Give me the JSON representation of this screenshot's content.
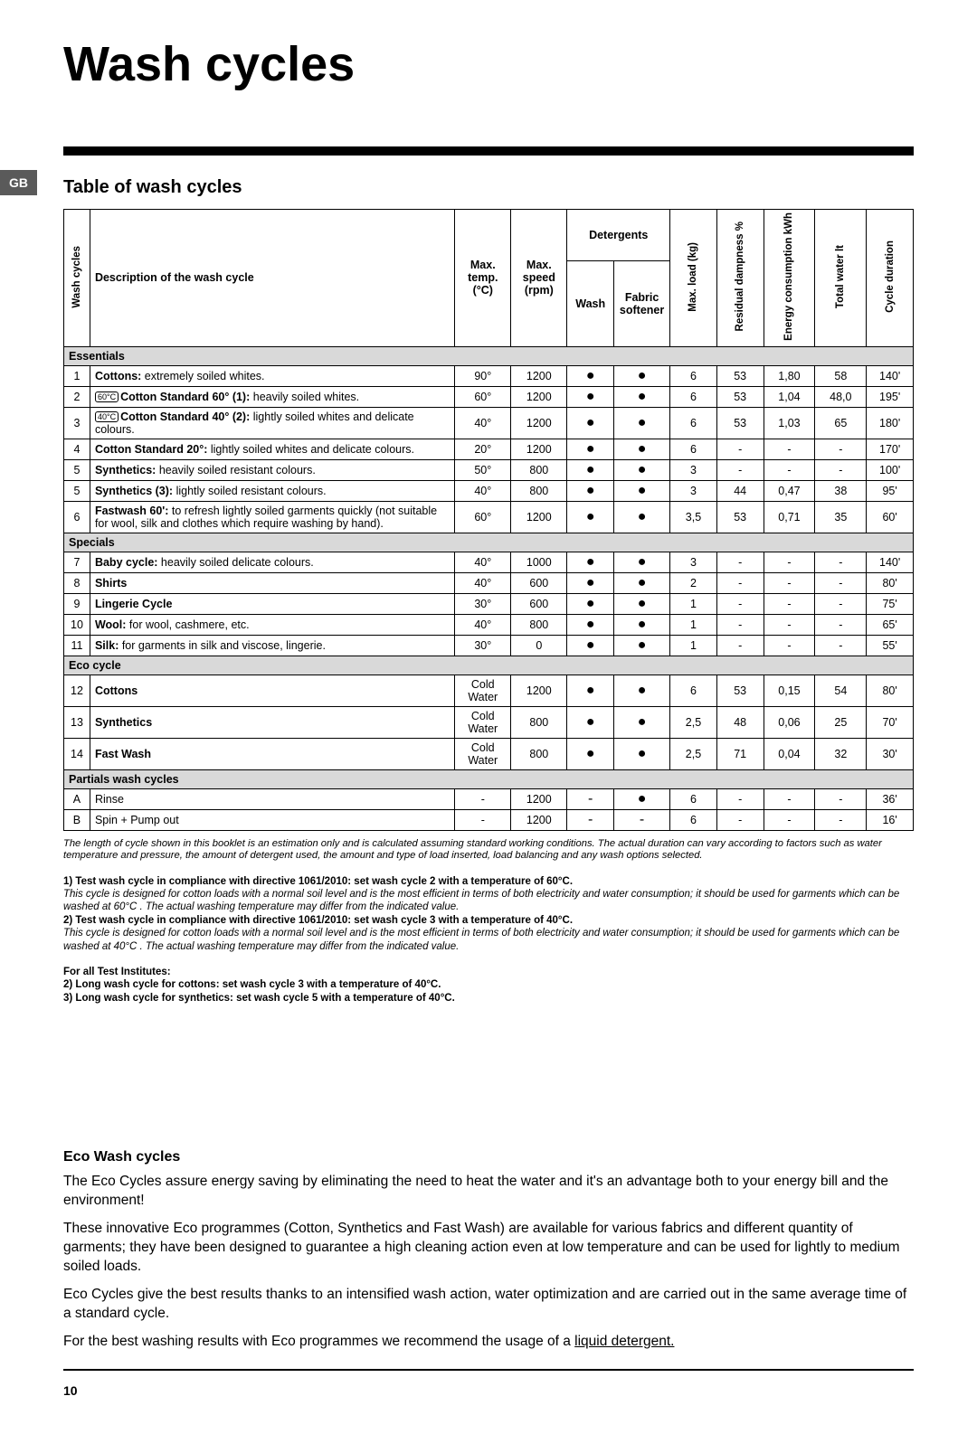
{
  "title": "Wash cycles",
  "gb": "GB",
  "subtitle": "Table of wash cycles",
  "headers": {
    "wash_cycles": "Wash cycles",
    "description": "Description of the wash cycle",
    "max_temp": "Max. temp. (°C)",
    "max_speed": "Max. speed (rpm)",
    "detergents": "Detergents",
    "wash": "Wash",
    "fabric_softener": "Fabric softener",
    "max_load": "Max. load (kg)",
    "residual_dampness": "Residual dampness %",
    "energy": "Energy consumption kWh",
    "total_water": "Total water lt",
    "cycle_duration": "Cycle duration"
  },
  "sections": [
    {
      "name": "Essentials",
      "rows": [
        {
          "n": "1",
          "desc": "<b>Cottons:</b> extremely soiled whites.",
          "temp": "90°",
          "speed": "1200",
          "wash": "●",
          "soft": "●",
          "load": "6",
          "damp": "53",
          "energy": "1,80",
          "water": "58",
          "dur": "140'"
        },
        {
          "n": "2",
          "desc": "<span class='tag'>60°C</span><b>Cotton Standard 60° (1):</b> heavily soiled whites.",
          "temp": "60°",
          "speed": "1200",
          "wash": "●",
          "soft": "●",
          "load": "6",
          "damp": "53",
          "energy": "1,04",
          "water": "48,0",
          "dur": "195'"
        },
        {
          "n": "3",
          "desc": "<span class='tag'>40°C</span><b>Cotton Standard 40° (2):</b> lightly soiled whites and delicate colours.",
          "temp": "40°",
          "speed": "1200",
          "wash": "●",
          "soft": "●",
          "load": "6",
          "damp": "53",
          "energy": "1,03",
          "water": "65",
          "dur": "180'"
        },
        {
          "n": "4",
          "desc": "<b>Cotton Standard 20°:</b> lightly soiled whites and delicate colours.",
          "temp": "20°",
          "speed": "1200",
          "wash": "●",
          "soft": "●",
          "load": "6",
          "damp": "-",
          "energy": "-",
          "water": "-",
          "dur": "170'"
        },
        {
          "n": "5",
          "desc": "<b>Synthetics:</b> heavily soiled resistant colours.",
          "temp": "50°",
          "speed": "800",
          "wash": "●",
          "soft": "●",
          "load": "3",
          "damp": "-",
          "energy": "-",
          "water": "-",
          "dur": "100'"
        },
        {
          "n": "5",
          "desc": "<b>Synthetics (3):</b> lightly soiled resistant colours.",
          "temp": "40°",
          "speed": "800",
          "wash": "●",
          "soft": "●",
          "load": "3",
          "damp": "44",
          "energy": "0,47",
          "water": "38",
          "dur": "95'"
        },
        {
          "n": "6",
          "desc": "<b>Fastwash 60':</b> to refresh lightly soiled garments quickly (not suitable for wool, silk and clothes which require washing by hand).",
          "temp": "60°",
          "speed": "1200",
          "wash": "●",
          "soft": "●",
          "load": "3,5",
          "damp": "53",
          "energy": "0,71",
          "water": "35",
          "dur": "60'"
        }
      ]
    },
    {
      "name": "Specials",
      "rows": [
        {
          "n": "7",
          "desc": "<b>Baby cycle:</b> heavily soiled delicate colours.",
          "temp": "40°",
          "speed": "1000",
          "wash": "●",
          "soft": "●",
          "load": "3",
          "damp": "-",
          "energy": "-",
          "water": "-",
          "dur": "140'"
        },
        {
          "n": "8",
          "desc": "<b>Shirts</b>",
          "temp": "40°",
          "speed": "600",
          "wash": "●",
          "soft": "●",
          "load": "2",
          "damp": "-",
          "energy": "-",
          "water": "-",
          "dur": "80'"
        },
        {
          "n": "9",
          "desc": "<b>Lingerie Cycle</b>",
          "temp": "30°",
          "speed": "600",
          "wash": "●",
          "soft": "●",
          "load": "1",
          "damp": "-",
          "energy": "-",
          "water": "-",
          "dur": "75'"
        },
        {
          "n": "10",
          "desc": "<b>Wool:</b> for wool, cashmere, etc.",
          "temp": "40°",
          "speed": "800",
          "wash": "●",
          "soft": "●",
          "load": "1",
          "damp": "-",
          "energy": "-",
          "water": "-",
          "dur": "65'"
        },
        {
          "n": "11",
          "desc": "<b>Silk:</b> for garments in silk and viscose, lingerie.",
          "temp": "30°",
          "speed": "0",
          "wash": "●",
          "soft": "●",
          "load": "1",
          "damp": "-",
          "energy": "-",
          "water": "-",
          "dur": "55'"
        }
      ]
    },
    {
      "name": "Eco cycle",
      "rows": [
        {
          "n": "12",
          "desc": "<b>Cottons</b>",
          "temp": "Cold Water",
          "speed": "1200",
          "wash": "●",
          "soft": "●",
          "load": "6",
          "damp": "53",
          "energy": "0,15",
          "water": "54",
          "dur": "80'"
        },
        {
          "n": "13",
          "desc": "<b>Synthetics</b>",
          "temp": "Cold Water",
          "speed": "800",
          "wash": "●",
          "soft": "●",
          "load": "2,5",
          "damp": "48",
          "energy": "0,06",
          "water": "25",
          "dur": "70'"
        },
        {
          "n": "14",
          "desc": "<b>Fast Wash</b>",
          "temp": "Cold Water",
          "speed": "800",
          "wash": "●",
          "soft": "●",
          "load": "2,5",
          "damp": "71",
          "energy": "0,04",
          "water": "32",
          "dur": "30'"
        }
      ]
    },
    {
      "name": "Partials wash cycles",
      "rows": [
        {
          "n": "A",
          "desc": "Rinse",
          "temp": "-",
          "speed": "1200",
          "wash": "-",
          "soft": "●",
          "load": "6",
          "damp": "-",
          "energy": "-",
          "water": "-",
          "dur": "36'"
        },
        {
          "n": "B",
          "desc": "Spin + Pump out",
          "temp": "-",
          "speed": "1200",
          "wash": "-",
          "soft": "-",
          "load": "6",
          "damp": "-",
          "energy": "-",
          "water": "-",
          "dur": "16'"
        }
      ]
    }
  ],
  "note_italic": "The length of cycle shown in this booklet is an estimation only and is calculated assuming standard working conditions. The actual duration can vary according to factors such as water temperature and pressure, the amount of detergent used, the amount and type of load inserted, load balancing and any wash options selected.",
  "note1_bold": "1) Test wash cycle in compliance with directive 1061/2010: set wash cycle 2  with a temperature of 60°C.",
  "note1_ital": "This cycle is designed for cotton loads with a normal soil level and is the most efficient in terms of both electricity and water consumption; it should be used for garments which can be washed at 60°C . The actual washing temperature may differ from the indicated value.",
  "note2_bold": "2) Test wash cycle in compliance with directive 1061/2010: set wash cycle 3  with a temperature of 40°C.",
  "note2_ital": "This cycle is designed for cotton loads with a normal soil level and is the most efficient in terms of both electricity and water consumption; it should be used for garments which can be washed at 40°C . The actual washing temperature may differ from the indicated value.",
  "inst_head": "For all Test Institutes:",
  "inst_2": "2) Long wash cycle for cottons: set wash cycle 3 with a temperature of 40°C.",
  "inst_3": "3) Long wash cycle for synthetics: set wash cycle 5 with a temperature of 40°C.",
  "eco_title": "Eco Wash cycles",
  "eco_p1": "The Eco Cycles assure energy saving by eliminating the need to heat the water and it's an advantage both to your energy bill and the environment!",
  "eco_p2": "These innovative Eco programmes (Cotton, Synthetics and Fast Wash)  are available for various fabrics and different quantity of garments; they have been designed to guarantee a high cleaning action even at low temperature and can be used for lightly to medium soiled loads.",
  "eco_p3": "Eco Cycles give the best results thanks to an intensified wash action, water optimization and are carried out in the same average time of a standard cycle.",
  "eco_p4_a": "For the best washing results with Eco programmes we recommend the usage of a ",
  "eco_p4_b": "liquid detergent.",
  "page_num": "10"
}
